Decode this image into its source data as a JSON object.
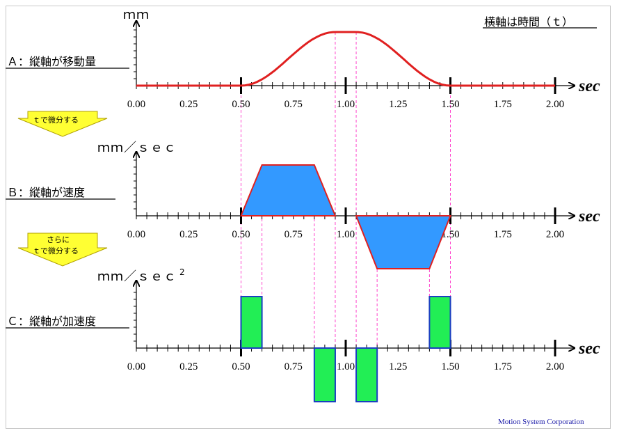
{
  "title": "横軸は時間（ｔ）",
  "sections": [
    {
      "label": "Ａ：縦軸が移動量",
      "unit": "ｍｍ"
    },
    {
      "label": "Ｂ：縦軸が速度",
      "unit": "ｍｍ／ｓｅｃ"
    },
    {
      "label": "Ｃ：縦軸が加速度",
      "unit": "ｍｍ／ｓｅｃ",
      "unit_sup": "2"
    }
  ],
  "x_unit": "sec",
  "x_ticks": [
    "0.00",
    "0.25",
    "0.50",
    "0.75",
    "1.00",
    "1.25",
    "1.50",
    "1.75",
    "2.00"
  ],
  "arrows": {
    "first": [
      "ｔで微分する"
    ],
    "second": [
      "さらに",
      "ｔで微分する"
    ]
  },
  "footer": "Motion System Corporation",
  "colors": {
    "position_curve": "#e02020",
    "velocity_fill": "#3399ff",
    "accel_fill": "#22ee55",
    "guide_lines": "#ff44cc",
    "arrow_fill": "#ffff33",
    "footer_text": "#1a1aa8"
  },
  "chart_data": [
    {
      "type": "line",
      "title": "Ａ：縦軸が移動量",
      "xlabel": "sec",
      "ylabel": "ｍｍ",
      "xlim": [
        0,
        2.0
      ],
      "series": [
        {
          "values_desc": "S-curve position",
          "x": [
            0,
            0.5,
            0.95,
            1.05,
            1.5,
            2.0
          ],
          "y": [
            0,
            0,
            1,
            1,
            0,
            0
          ]
        }
      ]
    },
    {
      "type": "line",
      "title": "Ｂ：縦軸が速度",
      "xlabel": "sec",
      "ylabel": "ｍｍ／ｓｅｃ",
      "xlim": [
        0,
        2.0
      ],
      "series": [
        {
          "x": [
            0.5,
            0.6,
            0.85,
            0.95,
            1.05,
            1.15,
            1.4,
            1.5
          ],
          "y": [
            0,
            1,
            1,
            0,
            0,
            -1,
            -1,
            0
          ]
        }
      ]
    },
    {
      "type": "bar",
      "title": "Ｃ：縦軸が加速度",
      "xlabel": "sec",
      "ylabel": "ｍｍ／ｓｅｃ2",
      "xlim": [
        0,
        2.0
      ],
      "series": [
        {
          "x_ranges": [
            [
              0.5,
              0.6
            ],
            [
              0.85,
              0.95
            ],
            [
              1.05,
              1.15
            ],
            [
              1.4,
              1.5
            ]
          ],
          "y": [
            1,
            -1,
            -1,
            1
          ]
        }
      ]
    }
  ]
}
